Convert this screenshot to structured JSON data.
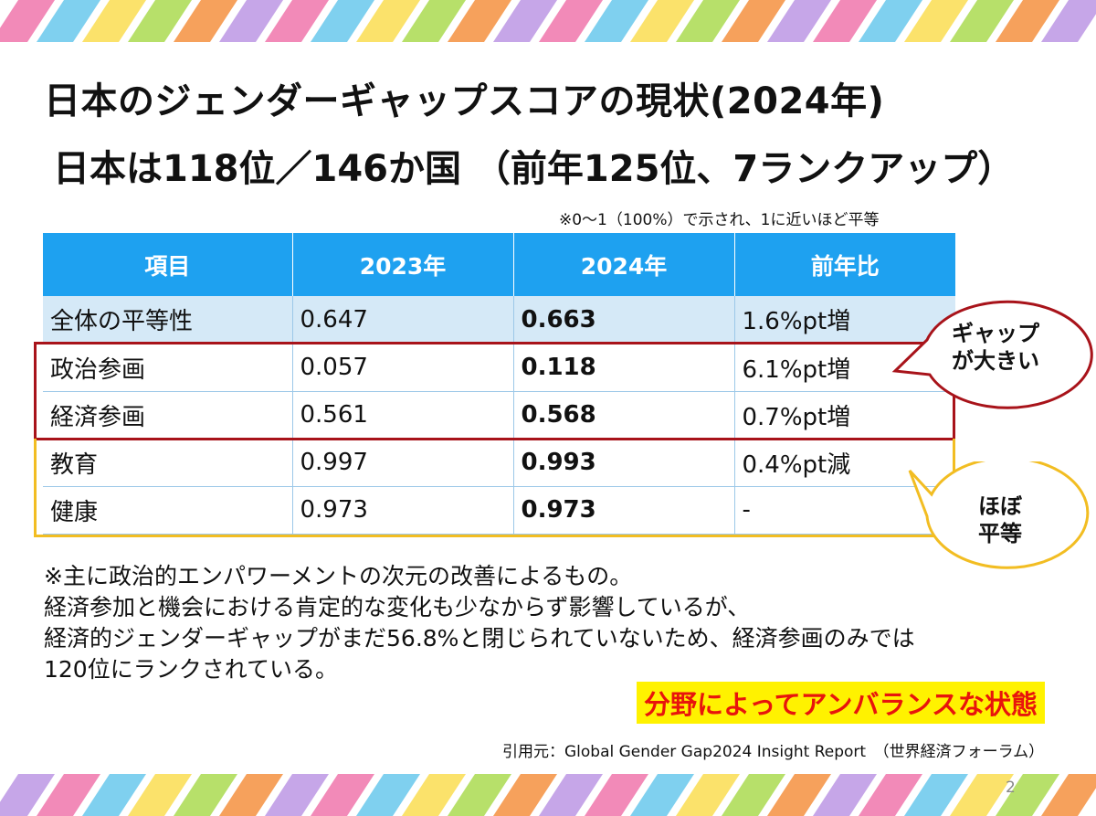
{
  "slide": {
    "title": "日本のジェンダーギャップスコアの現状(2024年)",
    "subtitle": "日本は118位／146か国 （前年125位、7ランクアップ）",
    "scale_note": "※0～1（100%）で示され、1に近いほど平等",
    "page_number": "2"
  },
  "table": {
    "headers": [
      "項目",
      "2023年",
      "2024年",
      "前年比"
    ],
    "rows": [
      {
        "item": "全体の平等性",
        "y2023": "0.647",
        "y2024": "0.663",
        "change": "1.6%pt増"
      },
      {
        "item": "政治参画",
        "y2023": "0.057",
        "y2024": "0.118",
        "change": "6.1%pt増"
      },
      {
        "item": "経済参画",
        "y2023": "0.561",
        "y2024": "0.568",
        "change": "0.7%pt増"
      },
      {
        "item": "教育",
        "y2023": "0.997",
        "y2024": "0.993",
        "change": "0.4%pt減"
      },
      {
        "item": "健康",
        "y2023": "0.973",
        "y2024": "0.973",
        "change": "-"
      }
    ]
  },
  "callouts": {
    "gap_line1": "ギャップ",
    "gap_line2": "が大きい",
    "equal_line1": "ほぼ",
    "equal_line2": "平等"
  },
  "body": {
    "line1": "※主に政治的エンパワーメントの次元の改善によるもの。",
    "line2": "経済参加と機会における肯定的な変化も少なからず影響しているが、",
    "line3": "経済的ジェンダーギャップがまだ56.8%と閉じられていないため、経済参画のみでは",
    "line4": "120位にランクされている。"
  },
  "highlight_text": "分野によってアンバランスな状態",
  "source": "引用元：Global Gender Gap2024 Insight Report　（世界経済フォーラム）",
  "colors": {
    "header_blue": "#1ea1f0",
    "first_row_bg": "#d5e9f7",
    "red_outline": "#a8131a",
    "yellow_outline": "#f2bd22",
    "highlight_bg": "#fff200",
    "highlight_text": "#e8140c"
  }
}
